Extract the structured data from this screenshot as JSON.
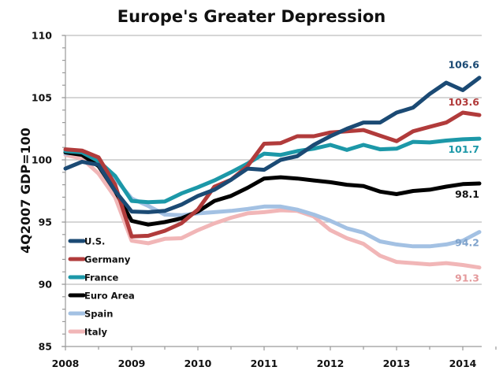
{
  "chart_data": {
    "type": "line",
    "title": "Europe's Greater Depression",
    "xlabel": "",
    "ylabel": "4Q2007 GDP=100",
    "ylim": [
      85,
      110
    ],
    "yticks": [
      85,
      90,
      95,
      100,
      105,
      110
    ],
    "y_minor_step": 1,
    "xticks": [
      "2008",
      "2009",
      "2010",
      "2011",
      "2012",
      "2013",
      "2014"
    ],
    "x_frequency": "quarterly",
    "x_start": "2008Q1",
    "x_end": "2014Q2",
    "grid": true,
    "legend_position": "bottom-left",
    "series": [
      {
        "name": "U.S.",
        "color": "#1b4a74",
        "end_label": "106.6",
        "values": [
          99.3,
          99.85,
          99.6,
          97.5,
          95.85,
          95.8,
          95.9,
          96.4,
          97.1,
          97.6,
          98.4,
          99.3,
          99.2,
          100.0,
          100.3,
          101.2,
          101.9,
          102.5,
          103.0,
          103.0,
          103.8,
          104.2,
          105.3,
          106.2,
          105.6,
          106.6
        ]
      },
      {
        "name": "Germany",
        "color": "#b13b3b",
        "end_label": "103.6",
        "values": [
          100.85,
          100.75,
          100.2,
          98.0,
          93.85,
          93.9,
          94.3,
          94.9,
          96.0,
          97.85,
          98.4,
          99.5,
          101.3,
          101.35,
          101.9,
          101.9,
          102.2,
          102.3,
          102.4,
          101.95,
          101.5,
          102.3,
          102.65,
          103.0,
          103.8,
          103.6
        ]
      },
      {
        "name": "France",
        "color": "#1c98a8",
        "end_label": "101.7",
        "values": [
          100.7,
          100.6,
          99.9,
          98.7,
          96.7,
          96.6,
          96.65,
          97.3,
          97.8,
          98.35,
          99.0,
          99.7,
          100.5,
          100.4,
          100.7,
          100.9,
          101.2,
          100.8,
          101.2,
          100.85,
          100.9,
          101.45,
          101.4,
          101.55,
          101.65,
          101.7
        ]
      },
      {
        "name": "Euro Area",
        "color": "#000000",
        "end_label": "98.1",
        "values": [
          100.6,
          100.4,
          99.5,
          97.5,
          95.1,
          94.8,
          95.0,
          95.3,
          95.85,
          96.7,
          97.1,
          97.75,
          98.5,
          98.6,
          98.5,
          98.35,
          98.2,
          98.0,
          97.9,
          97.45,
          97.25,
          97.5,
          97.6,
          97.85,
          98.05,
          98.1
        ]
      },
      {
        "name": "Spain",
        "color": "#a3c1e3",
        "end_label": "94.2",
        "values": [
          100.5,
          100.6,
          99.8,
          98.5,
          96.9,
          96.3,
          95.6,
          95.55,
          95.7,
          95.8,
          95.9,
          96.05,
          96.25,
          96.25,
          96.0,
          95.6,
          95.1,
          94.5,
          94.15,
          93.45,
          93.2,
          93.05,
          93.05,
          93.2,
          93.5,
          94.2
        ]
      },
      {
        "name": "Italy",
        "color": "#f1b6b7",
        "end_label": "91.3",
        "values": [
          100.4,
          100.1,
          98.9,
          97.0,
          93.5,
          93.3,
          93.65,
          93.7,
          94.35,
          94.9,
          95.35,
          95.7,
          95.8,
          95.95,
          95.9,
          95.45,
          94.35,
          93.7,
          93.25,
          92.3,
          91.8,
          91.7,
          91.6,
          91.7,
          91.55,
          91.35
        ]
      }
    ],
    "end_label_colors": {
      "U.S.": "#1b4a74",
      "Germany": "#b13b3b",
      "France": "#1c98a8",
      "Euro Area": "#111111",
      "Spain": "#7fa3cc",
      "Italy": "#e49a9c"
    }
  }
}
